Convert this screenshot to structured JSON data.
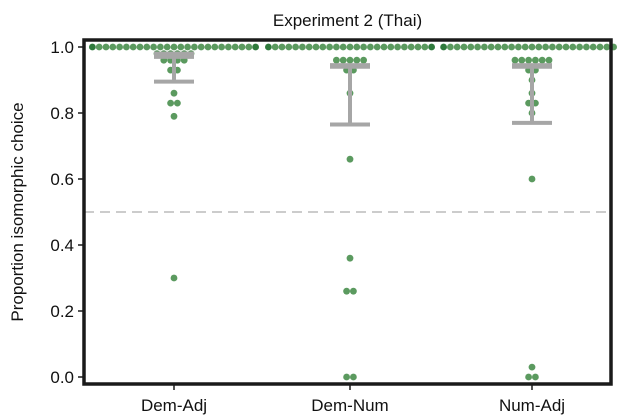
{
  "chart_data": {
    "type": "scatter",
    "title": "Experiment 2 (Thai)",
    "xlabel": "",
    "ylabel": "Proportion isomorphic choice",
    "ylim": [
      -0.02,
      1.025
    ],
    "yticks": [
      0.0,
      0.2,
      0.4,
      0.6,
      0.8,
      1.0
    ],
    "ytick_labels": [
      "0.0",
      "0.2",
      "0.4",
      "0.6",
      "0.8",
      "1.0"
    ],
    "categories": [
      "Dem-Adj",
      "Dem-Num",
      "Num-Adj"
    ],
    "chance_line": 0.5,
    "grid": false,
    "colors": {
      "point": "#5b9a5f",
      "point_dark": "#2f7a3c",
      "mean": "#a6a6a6",
      "chance": "#9a9a9a",
      "axis": "#1a1a1a"
    },
    "series": [
      {
        "category": "Dem-Adj",
        "points": [
          {
            "y": 1.0,
            "n": 25
          },
          {
            "y": 0.98,
            "n": 6
          },
          {
            "y": 0.96,
            "n": 4
          },
          {
            "y": 0.93,
            "n": 2
          },
          {
            "y": 0.86,
            "n": 1
          },
          {
            "y": 0.83,
            "n": 2
          },
          {
            "y": 0.79,
            "n": 1
          },
          {
            "y": 0.3,
            "n": 1
          }
        ],
        "mean": 0.97,
        "ci": [
          0.895,
          0.98
        ]
      },
      {
        "category": "Dem-Num",
        "points": [
          {
            "y": 1.0,
            "n": 25
          },
          {
            "y": 0.96,
            "n": 5
          },
          {
            "y": 0.93,
            "n": 2
          },
          {
            "y": 0.86,
            "n": 1
          },
          {
            "y": 0.66,
            "n": 1
          },
          {
            "y": 0.36,
            "n": 1
          },
          {
            "y": 0.26,
            "n": 2
          },
          {
            "y": 0.0,
            "n": 2
          }
        ],
        "mean": 0.94,
        "ci": [
          0.765,
          0.945
        ]
      },
      {
        "category": "Num-Adj",
        "points": [
          {
            "y": 1.0,
            "n": 27
          },
          {
            "y": 0.96,
            "n": 6
          },
          {
            "y": 0.93,
            "n": 2
          },
          {
            "y": 0.9,
            "n": 1
          },
          {
            "y": 0.86,
            "n": 1
          },
          {
            "y": 0.83,
            "n": 2
          },
          {
            "y": 0.8,
            "n": 1
          },
          {
            "y": 0.6,
            "n": 1
          },
          {
            "y": 0.03,
            "n": 1
          },
          {
            "y": 0.0,
            "n": 2
          }
        ],
        "mean": 0.94,
        "ci": [
          0.77,
          0.945
        ]
      }
    ]
  }
}
